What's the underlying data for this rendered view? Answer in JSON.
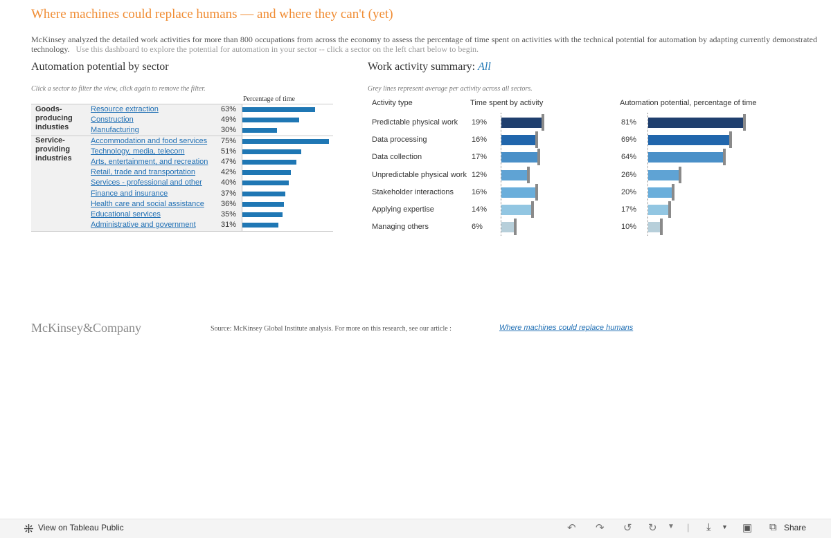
{
  "header": {
    "title": "Where machines could replace humans — and where they can't (yet)",
    "intro": "McKinsey analyzed the detailed work activities for more than 800 occupations from across the economy to assess the percentage of time spent on activities with the technical potential for automation by adapting currently demonstrated technology.",
    "intro_hint": "Use this dashboard to explore the potential for automation in your sector -- click a sector on the left chart below to begin."
  },
  "left_panel": {
    "title": "Automation potential by sector",
    "instruction": "Click a sector to filter the view, click again to remove the filter.",
    "column_header": "Percentage of time",
    "groups": [
      {
        "label": "Goods-producing industies",
        "sectors": [
          {
            "name": "Resource extraction",
            "pct_label": "63%",
            "value": 63
          },
          {
            "name": "Construction",
            "pct_label": "49%",
            "value": 49
          },
          {
            "name": "Manufacturing",
            "pct_label": "30%",
            "value": 30
          }
        ]
      },
      {
        "label": "Service-providing industries",
        "sectors": [
          {
            "name": "Accommodation and food services",
            "pct_label": "75%",
            "value": 75
          },
          {
            "name": "Technology, media, telecom",
            "pct_label": "51%",
            "value": 51
          },
          {
            "name": "Arts, entertainment, and recreation",
            "pct_label": "47%",
            "value": 47
          },
          {
            "name": "Retail, trade and transportation",
            "pct_label": "42%",
            "value": 42
          },
          {
            "name": "Services - professional and other",
            "pct_label": "40%",
            "value": 40
          },
          {
            "name": "Finance and insurance",
            "pct_label": "37%",
            "value": 37
          },
          {
            "name": "Health care and social assistance",
            "pct_label": "36%",
            "value": 36
          },
          {
            "name": "Educational services",
            "pct_label": "35%",
            "value": 35
          },
          {
            "name": "Administrative and government",
            "pct_label": "31%",
            "value": 31
          }
        ]
      }
    ]
  },
  "right_panel": {
    "title_prefix": "Work activity summary:",
    "filter_value": "All",
    "note": "Grey lines represent average per activity across all sectors.",
    "col_activity": "Activity type",
    "col_time": "Time spent by activity",
    "col_automation": "Automation potential, percentage of time",
    "activities": [
      {
        "name": "Predictable physical work",
        "time_label": "19%",
        "time": 19,
        "auto_label": "81%",
        "auto": 81,
        "color": "#1f3f6e"
      },
      {
        "name": "Data processing",
        "time_label": "16%",
        "time": 16,
        "auto_label": "69%",
        "auto": 69,
        "color": "#2166ac"
      },
      {
        "name": "Data collection",
        "time_label": "17%",
        "time": 17,
        "auto_label": "64%",
        "auto": 64,
        "color": "#4a90c8"
      },
      {
        "name": "Unpredictable physical work",
        "time_label": "12%",
        "time": 12,
        "auto_label": "26%",
        "auto": 26,
        "color": "#5fa3d4"
      },
      {
        "name": "Stakeholder interactions",
        "time_label": "16%",
        "time": 16,
        "auto_label": "20%",
        "auto": 20,
        "color": "#6aaedb"
      },
      {
        "name": "Applying expertise",
        "time_label": "14%",
        "time": 14,
        "auto_label": "17%",
        "auto": 17,
        "color": "#92c6e2"
      },
      {
        "name": "Managing others",
        "time_label": "6%",
        "time": 6,
        "auto_label": "10%",
        "auto": 10,
        "color": "#b7cfda"
      }
    ]
  },
  "footer": {
    "logo": "McKinsey&Company",
    "source": "Source: McKinsey Global Institute analysis.  For more on this research, see our article :",
    "link": "Where machines could replace humans"
  },
  "toolbar": {
    "view_label": "View on Tableau Public",
    "share_label": "Share"
  }
}
